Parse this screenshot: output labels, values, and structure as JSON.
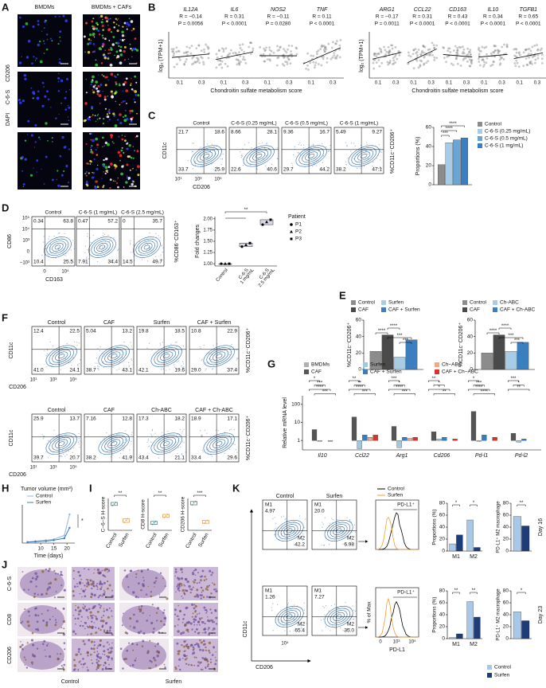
{
  "A": {
    "label": "A",
    "columns": [
      "BMDMs",
      "BMDMs + CAFs"
    ],
    "stain": [
      "DAPI",
      "C-6-S",
      "CD206"
    ]
  },
  "B": {
    "label": "B",
    "ylabel": "log₂ (TPM+1)",
    "xlabel": "Chondroitin sulfate metabolism score",
    "xticks": [
      "0.1",
      "0.3"
    ],
    "left": [
      {
        "gene": "IL12A",
        "r": "R = −0.14",
        "p": "P = 0.0056"
      },
      {
        "gene": "IL6",
        "r": "R = 0.31",
        "p": "P < 0.0001"
      },
      {
        "gene": "NOS2",
        "r": "R = −0.11",
        "p": "P = 0.0280"
      },
      {
        "gene": "TNF",
        "r": "R = 0.11",
        "p": "P < 0.0001"
      }
    ],
    "right": [
      {
        "gene": "ARG1",
        "r": "R = −0.17",
        "p": "P = 0.0011"
      },
      {
        "gene": "CCL22",
        "r": "R = 0.31",
        "p": "P < 0.0001"
      },
      {
        "gene": "CD163",
        "r": "R = 0.43",
        "p": "P < 0.0001"
      },
      {
        "gene": "IL10",
        "r": "R = 0.34",
        "p": "P < 0.0001"
      },
      {
        "gene": "TGFB1",
        "r": "R = 0.65",
        "p": "P < 0.0001"
      }
    ]
  },
  "C": {
    "label": "C",
    "yaxis": "CD11c",
    "xaxis": "CD206",
    "xticks": [
      "10¹",
      "10³",
      "10⁵"
    ],
    "side": "%CD11c⁻CD206⁺",
    "plots": [
      {
        "title": "Control",
        "q": [
          "21.7",
          "18.6",
          "33.7",
          "25.9"
        ]
      },
      {
        "title": "C-6-S (0.25 mg/mL)",
        "q": [
          "8.66",
          "28.1",
          "22.6",
          "40.6"
        ]
      },
      {
        "title": "C-6-S (0.5 mg/mL)",
        "q": [
          "9.36",
          "16.7",
          "29.7",
          "44.2"
        ]
      },
      {
        "title": "C-6-S (1 mg/mL)",
        "q": [
          "5.49",
          "9.27",
          "38.2",
          "47.1"
        ]
      }
    ],
    "bars": {
      "ylabel": "Proportions (%)",
      "ylim": [
        0,
        60
      ],
      "yticks": [
        0,
        20,
        40,
        60
      ],
      "series": [
        {
          "name": "Control",
          "color": "#8c8c8c",
          "values": [
            21
          ]
        },
        {
          "name": "C-6-S (0.25 mg/mL)",
          "color": "#a9cce6",
          "values": [
            44
          ]
        },
        {
          "name": "C-6-S (0.5 mg/mL)",
          "color": "#6aa5d6",
          "values": [
            47
          ]
        },
        {
          "name": "C-6-S (1 mg/mL)",
          "color": "#3b7fc0",
          "values": [
            49
          ]
        }
      ],
      "sig": [
        "***",
        "****",
        "****"
      ]
    }
  },
  "D": {
    "label": "D",
    "yaxis": "CD86",
    "xaxis": "CD163",
    "yticks": [
      "10⁵",
      "10⁴",
      "10³",
      "0",
      "−10³"
    ],
    "xticks": [
      "0",
      "10⁴"
    ],
    "side": "%CD86⁻CD163⁺",
    "plots": [
      {
        "title": "Control",
        "q": [
          "0.34",
          "63.8",
          "10.4",
          "25.5"
        ]
      },
      {
        "title": "C-6-S (1 mg/mL)",
        "q": [
          "0.47",
          "57.2",
          "7.91",
          "34.4"
        ]
      },
      {
        "title": "C-6-S (2.5 mg/mL)",
        "q": [
          "0",
          "35.7",
          "14.5",
          "49.7"
        ]
      }
    ],
    "fold": {
      "ylabel": "Fold changes",
      "ylim": [
        0.95,
        2.05
      ],
      "yticks": [
        {
          "value": 1,
          "label": "1.00"
        },
        1.25,
        {
          "value": 1.5,
          "label": "1.50"
        },
        1.75,
        {
          "value": 2,
          "label": "2.00"
        }
      ],
      "categories": [
        [
          "Control"
        ],
        [
          "C-6-S",
          "1 mg/mL"
        ],
        [
          "C-6-S",
          "2.5 mg/mL"
        ]
      ],
      "points": [
        [
          1,
          1,
          1
        ],
        [
          1.38,
          1.42,
          1.46
        ],
        [
          1.87,
          1.93,
          1.98
        ]
      ],
      "sig": "**",
      "legend_title": "Patient",
      "patients": [
        "P1",
        "P2",
        "P3"
      ]
    }
  },
  "E": {
    "label": "E",
    "charts": [
      {
        "ylabel": "%CD11c⁻CD206⁺",
        "ylim": [
          0,
          60
        ],
        "yticks": [
          0,
          20,
          40,
          60
        ],
        "series": [
          {
            "name": "Control",
            "color": "#8c8c8c",
            "values": [
              22
            ]
          },
          {
            "name": "CAF",
            "color": "#4a4a4a",
            "values": [
              42
            ]
          },
          {
            "name": "Surfen",
            "color": "#a9cce6",
            "values": [
              15
            ]
          },
          {
            "name": "CAF + Surfen",
            "color": "#3b7fc0",
            "values": [
              36
            ]
          }
        ],
        "sig": [
          "****",
          "****",
          "***",
          "***"
        ]
      },
      {
        "ylabel": "%CD11c⁻CD206⁺",
        "ylim": [
          0,
          60
        ],
        "yticks": [
          0,
          20,
          40,
          60
        ],
        "series": [
          {
            "name": "Control",
            "color": "#8c8c8c",
            "values": [
              20
            ]
          },
          {
            "name": "CAF",
            "color": "#4a4a4a",
            "values": [
              42
            ]
          },
          {
            "name": "Ch-ABC",
            "color": "#a9cce6",
            "values": [
              22
            ]
          },
          {
            "name": "CAF + Ch-ABC",
            "color": "#3b7fc0",
            "values": [
              33
            ]
          }
        ],
        "sig": [
          "****",
          "****",
          "***",
          "***"
        ]
      }
    ]
  },
  "F": {
    "label": "F",
    "yaxis": "CD11c",
    "xaxis": "CD206",
    "xticks": [
      "10¹",
      "10³",
      "10⁵"
    ],
    "side": "%CD11c⁻CD206⁺",
    "top": [
      {
        "title": "Control",
        "q": [
          "12.4",
          "22.5",
          "41.0",
          "24.1"
        ]
      },
      {
        "title": "CAF",
        "q": [
          "5.04",
          "13.2",
          "38.7",
          "43.1"
        ]
      },
      {
        "title": "Surfen",
        "q": [
          "19.8",
          "18.5",
          "42.1",
          "19.6"
        ]
      },
      {
        "title": "CAF + Surfen",
        "q": [
          "10.8",
          "22.9",
          "29.0",
          "37.4"
        ]
      }
    ],
    "bottom": [
      {
        "title": "Control",
        "q": [
          "25.9",
          "13.7",
          "39.7",
          "20.7"
        ]
      },
      {
        "title": "CAF",
        "q": [
          "7.16",
          "12.8",
          "38.2",
          "41.9"
        ]
      },
      {
        "title": "Ch-ABC",
        "q": [
          "17.3",
          "18.2",
          "43.4",
          "21.1"
        ]
      },
      {
        "title": "CAF + Ch-ABC",
        "q": [
          "18.9",
          "17.1",
          "33.4",
          "29.6"
        ]
      }
    ]
  },
  "G": {
    "label": "G",
    "ylabel": "Relative mRNA level",
    "log": true,
    "ylim": [
      0.3,
      300
    ],
    "yticks": [
      1,
      10,
      100
    ],
    "categories": [
      "Il10",
      "Ccl22",
      "Arg1",
      "Cd206",
      "Pd-l1",
      "Pd-l2"
    ],
    "series": [
      {
        "name": "BMDMs",
        "color": "#b0b0b0",
        "values": [
          1,
          1,
          1,
          1,
          1,
          1
        ]
      },
      {
        "name": "CAF",
        "color": "#555555",
        "values": [
          4,
          20,
          6,
          3,
          40,
          2.5
        ]
      },
      {
        "name": "Surfen",
        "color": "#9ecae1",
        "values": [
          0.9,
          0.35,
          0.4,
          1.2,
          0.9,
          0.8
        ]
      },
      {
        "name": "CAF + Surfen",
        "color": "#3a7dbf",
        "values": [
          1,
          2,
          1.5,
          1.5,
          2,
          1.2
        ]
      },
      {
        "name": "Ch−ABC",
        "color": "#f4a582",
        "values": [
          0.9,
          1.5,
          1.3,
          1,
          1,
          1
        ]
      },
      {
        "name": "CAF + Ch−ABC",
        "color": "#d6342c",
        "values": [
          1,
          2,
          1.5,
          1.2,
          1.5,
          1
        ]
      }
    ],
    "sig": [
      [
        "*",
        "***",
        "****",
        "***"
      ],
      [
        "**",
        "**",
        "****",
        "***"
      ],
      [
        "***",
        "*",
        "****",
        "***"
      ],
      [
        "**",
        "*",
        "*",
        "**"
      ],
      [
        "*",
        "***",
        "****",
        "****"
      ],
      [
        "***",
        "*",
        "**"
      ]
    ]
  },
  "H": {
    "label": "H",
    "title": "Tumor volume (mm³)",
    "xlabel": "Time (days)",
    "xlim": [
      3,
      23
    ],
    "xticks": [
      10,
      15,
      20
    ],
    "ylim": [
      0,
      40
    ],
    "x": [
      5,
      8,
      12,
      15,
      19,
      21
    ],
    "series": [
      {
        "name": "Control",
        "color": "#8fb7e0",
        "values": [
          1,
          2,
          3,
          4,
          8,
          30
        ]
      },
      {
        "name": "Surfen",
        "color": "#3e78b8",
        "values": [
          1,
          1.5,
          2,
          3,
          5,
          16
        ]
      }
    ],
    "sig": "*"
  },
  "I": {
    "label": "I",
    "categories": [
      "Control",
      "Surfen"
    ],
    "colors": [
      "#4f8a8b",
      "#f0a040"
    ],
    "charts": [
      {
        "ylabel": "C−6−S H-score",
        "sig": "**",
        "ylim": [
          100,
          260
        ],
        "values": [
          [
            225,
            232,
            240
          ],
          [
            140,
            150,
            158
          ]
        ]
      },
      {
        "ylabel": "CD8 H-score",
        "sig": "**",
        "ylim": [
          100,
          260
        ],
        "values": [
          [
            130,
            138,
            145
          ],
          [
            165,
            172,
            180
          ]
        ]
      },
      {
        "ylabel": "CD206 H-score",
        "sig": "***",
        "ylim": [
          100,
          260
        ],
        "values": [
          [
            228,
            238,
            245
          ],
          [
            135,
            142,
            150
          ]
        ]
      }
    ]
  },
  "J": {
    "label": "J",
    "rows": [
      "C-6-S",
      "CD8",
      "CD206"
    ],
    "columns": [
      "Control",
      "Surfen"
    ]
  },
  "K": {
    "label": "K",
    "yaxis": "CD11c",
    "xaxis": "CD206",
    "xtick": "10⁴",
    "gates": [
      "M1",
      "M2"
    ],
    "plots": [
      {
        "title": "Control",
        "m1": "4.97",
        "m2": "42.2"
      },
      {
        "title": "Surfen",
        "m1": "20.0",
        "m2": "6.98"
      },
      {
        "m1": "1.26",
        "m2": "65.4"
      },
      {
        "m1": "7.27",
        "m2": "35.0"
      }
    ],
    "histogram": {
      "legend": [
        {
          "name": "Control",
          "color": "#000000"
        },
        {
          "name": "Surfen",
          "color": "#f0a030"
        }
      ],
      "gate": "PD-L1⁺",
      "ylabel": "% of Max",
      "xlabel": "PD-L1",
      "xticks": [
        "0",
        "10³",
        "10⁵"
      ]
    },
    "categories": [
      "M1",
      "M2"
    ],
    "legend": [
      {
        "name": "Control",
        "color": "#a8c8ea"
      },
      {
        "name": "Surfen",
        "color": "#1e3d78"
      }
    ],
    "days": [
      {
        "day": "Day 16",
        "props": {
          "ylabel": "Proportions (%)",
          "ylim": [
            0,
            80
          ],
          "yticks": [
            0,
            20,
            40,
            60,
            80
          ],
          "series": [
            {
              "values": [
                12,
                52
              ]
            },
            {
              "values": [
                27,
                6
              ]
            }
          ],
          "sig": [
            "*",
            "*"
          ]
        },
        "pdl1": {
          "ylabel": "PD-L1⁺ M2 macrophage",
          "ylim": [
            0,
            80
          ],
          "yticks": [
            0,
            20,
            40,
            60,
            80
          ],
          "series": [
            {
              "values": [
                58
              ]
            },
            {
              "values": [
                42
              ]
            }
          ],
          "sig": "**"
        }
      },
      {
        "day": "Day 23",
        "props": {
          "ylabel": "Proportions (%)",
          "ylim": [
            0,
            80
          ],
          "yticks": [
            0,
            20,
            40,
            60,
            80
          ],
          "series": [
            {
              "values": [
                2,
                62
              ]
            },
            {
              "values": [
                8,
                36
              ]
            }
          ],
          "sig": [
            "**",
            "**"
          ]
        },
        "pdl1": {
          "ylabel": "PD-L1⁺ M2 macrophage",
          "ylim": [
            0,
            80
          ],
          "yticks": [
            0,
            20,
            40,
            60,
            80
          ],
          "series": [
            {
              "values": [
                45
              ]
            },
            {
              "values": [
                30
              ]
            }
          ],
          "sig": "*"
        }
      }
    ]
  }
}
